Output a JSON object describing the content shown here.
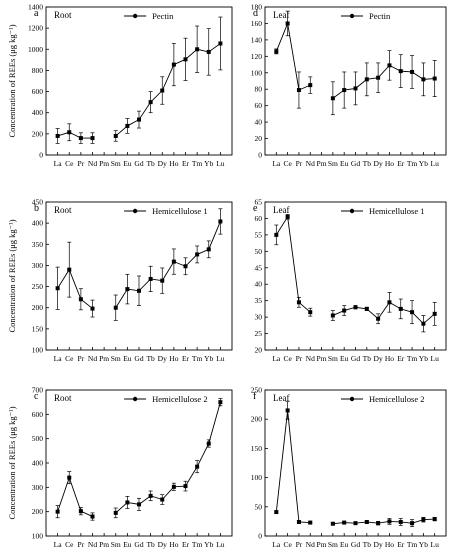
{
  "chart_data": [
    {
      "type": "line",
      "panel": "a",
      "tissue": "Root",
      "legend": "Pectin",
      "ylabel": "Concentration of REEs (μg kg⁻¹)",
      "ylim": [
        0,
        1400
      ],
      "yticks": [
        0,
        200,
        400,
        600,
        800,
        1000,
        1200,
        1400
      ],
      "categories": [
        "La",
        "Ce",
        "Pr",
        "Nd",
        "Pm",
        "Sm",
        "Eu",
        "Gd",
        "Tb",
        "Dy",
        "Ho",
        "Er",
        "Tm",
        "Yb",
        "Lu"
      ],
      "segments": [
        {
          "x": [
            "La",
            "Ce",
            "Pr",
            "Nd"
          ],
          "y": [
            180,
            215,
            160,
            160
          ],
          "err": [
            70,
            80,
            50,
            50
          ]
        },
        {
          "x": [
            "Sm",
            "Eu",
            "Gd",
            "Tb",
            "Dy",
            "Ho",
            "Er",
            "Tm",
            "Yb",
            "Lu"
          ],
          "y": [
            180,
            275,
            335,
            500,
            610,
            855,
            905,
            1000,
            975,
            1055
          ],
          "err": [
            50,
            70,
            80,
            100,
            130,
            200,
            200,
            220,
            220,
            250
          ]
        }
      ]
    },
    {
      "type": "line",
      "panel": "d",
      "tissue": "Leaf",
      "legend": "Pectin",
      "ylabel": "",
      "ylim": [
        0,
        180
      ],
      "yticks": [
        0,
        20,
        40,
        60,
        80,
        100,
        120,
        140,
        160,
        180
      ],
      "categories": [
        "La",
        "Ce",
        "Pr",
        "Nd",
        "Pm",
        "Sm",
        "Eu",
        "Gd",
        "Tb",
        "Dy",
        "Ho",
        "Er",
        "Tm",
        "Yb",
        "Lu"
      ],
      "segments": [
        {
          "x": [
            "La",
            "Ce",
            "Pr",
            "Nd"
          ],
          "y": [
            126,
            160,
            79,
            85
          ],
          "err": [
            3,
            15,
            22,
            10
          ]
        },
        {
          "x": [
            "Sm",
            "Eu",
            "Gd",
            "Tb",
            "Dy",
            "Ho",
            "Er",
            "Tm",
            "Yb",
            "Lu"
          ],
          "y": [
            69,
            79,
            81,
            92,
            94,
            109,
            102,
            101,
            92,
            93
          ],
          "err": [
            20,
            22,
            20,
            20,
            18,
            18,
            20,
            20,
            20,
            22
          ]
        }
      ]
    },
    {
      "type": "line",
      "panel": "b",
      "tissue": "Root",
      "legend": "Hemicellulose 1",
      "ylabel": "Concentration of REEs (μg kg⁻¹)",
      "ylim": [
        100,
        450
      ],
      "yticks": [
        100,
        150,
        200,
        250,
        300,
        350,
        400,
        450
      ],
      "categories": [
        "La",
        "Ce",
        "Pr",
        "Nd",
        "Pm",
        "Sm",
        "Eu",
        "Gd",
        "Tb",
        "Dy",
        "Ho",
        "Er",
        "Tm",
        "Yb",
        "Lu"
      ],
      "segments": [
        {
          "x": [
            "La",
            "Ce",
            "Pr",
            "Nd"
          ],
          "y": [
            246,
            290,
            220,
            198
          ],
          "err": [
            50,
            65,
            25,
            20
          ]
        },
        {
          "x": [
            "Sm",
            "Eu",
            "Gd",
            "Tb",
            "Dy",
            "Ho",
            "Er",
            "Tm",
            "Yb",
            "Lu"
          ],
          "y": [
            200,
            244,
            240,
            268,
            264,
            309,
            298,
            326,
            338,
            404
          ],
          "err": [
            30,
            35,
            35,
            30,
            30,
            30,
            20,
            20,
            20,
            30
          ]
        }
      ]
    },
    {
      "type": "line",
      "panel": "e",
      "tissue": "Leaf",
      "legend": "Hemicellulose 1",
      "ylabel": "",
      "ylim": [
        20,
        65
      ],
      "yticks": [
        20,
        25,
        30,
        35,
        40,
        45,
        50,
        55,
        60,
        65
      ],
      "categories": [
        "La",
        "Ce",
        "Pr",
        "Nd",
        "Pm",
        "Sm",
        "Eu",
        "Gd",
        "Tb",
        "Dy",
        "Ho",
        "Er",
        "Tm",
        "Yb",
        "Lu"
      ],
      "segments": [
        {
          "x": [
            "La",
            "Ce",
            "Pr",
            "Nd"
          ],
          "y": [
            55,
            60.5,
            34.5,
            31.5
          ],
          "err": [
            3,
            0.7,
            1.5,
            1.2
          ]
        },
        {
          "x": [
            "Sm",
            "Eu",
            "Gd",
            "Tb",
            "Dy",
            "Ho",
            "Er",
            "Tm",
            "Yb",
            "Lu"
          ],
          "y": [
            30.5,
            32,
            33,
            32.5,
            29.5,
            34.5,
            32.5,
            31.5,
            28,
            31
          ],
          "err": [
            1.5,
            1.5,
            0.5,
            0.5,
            1.5,
            3,
            3,
            3.5,
            2.5,
            3.5
          ]
        }
      ]
    },
    {
      "type": "line",
      "panel": "c",
      "tissue": "Root",
      "legend": "Hemicellulose 2",
      "ylabel": "Concentration of REEs (μg kg⁻¹)",
      "ylim": [
        100,
        700
      ],
      "yticks": [
        100,
        200,
        300,
        400,
        500,
        600,
        700
      ],
      "categories": [
        "La",
        "Ce",
        "Pr",
        "Nd",
        "Pm",
        "Sm",
        "Eu",
        "Gd",
        "Tb",
        "Dy",
        "Ho",
        "Er",
        "Tm",
        "Yb",
        "Lu"
      ],
      "segments": [
        {
          "x": [
            "La",
            "Ce",
            "Pr",
            "Nd"
          ],
          "y": [
            200,
            340,
            202,
            180
          ],
          "err": [
            25,
            25,
            15,
            15
          ]
        },
        {
          "x": [
            "Sm",
            "Eu",
            "Gd",
            "Tb",
            "Dy",
            "Ho",
            "Er",
            "Tm",
            "Yb",
            "Lu"
          ],
          "y": [
            195,
            238,
            230,
            265,
            250,
            302,
            305,
            385,
            480,
            650
          ],
          "err": [
            20,
            25,
            25,
            20,
            20,
            15,
            20,
            25,
            15,
            15
          ]
        }
      ]
    },
    {
      "type": "line",
      "panel": "f",
      "tissue": "Leaf",
      "legend": "Hemicellulose 2",
      "ylabel": "",
      "ylim": [
        0,
        250
      ],
      "yticks": [
        0,
        50,
        100,
        150,
        200,
        250
      ],
      "categories": [
        "La",
        "Ce",
        "Pr",
        "Nd",
        "Pm",
        "Sm",
        "Eu",
        "Gd",
        "Tb",
        "Dy",
        "Ho",
        "Er",
        "Tm",
        "Yb",
        "Lu"
      ],
      "segments": [
        {
          "x": [
            "La",
            "Ce",
            "Pr",
            "Nd"
          ],
          "y": [
            41,
            215,
            24,
            23
          ],
          "err": [
            2,
            15,
            2,
            2
          ]
        },
        {
          "x": [
            "Sm",
            "Eu",
            "Gd",
            "Tb",
            "Dy",
            "Ho",
            "Er",
            "Tm",
            "Yb",
            "Lu"
          ],
          "y": [
            21,
            23,
            22,
            24,
            22,
            25,
            24,
            22,
            28,
            29
          ],
          "err": [
            2,
            2,
            2,
            2,
            3,
            5,
            6,
            6,
            4,
            3
          ]
        }
      ]
    }
  ]
}
